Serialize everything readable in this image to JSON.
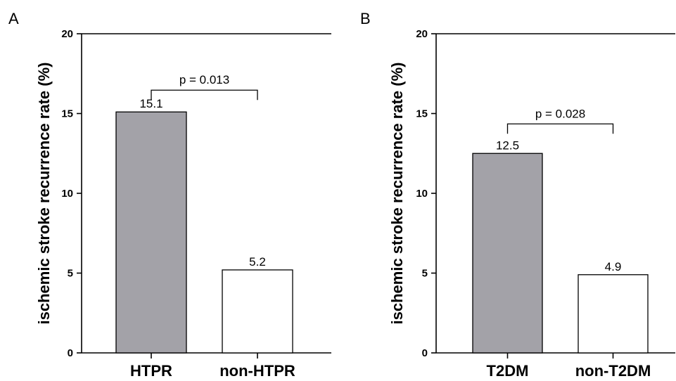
{
  "chart_data": [
    {
      "type": "bar",
      "panel": "A",
      "categories": [
        "HTPR",
        "non-HTPR"
      ],
      "values": [
        15.1,
        5.2
      ],
      "value_labels": [
        "15.1",
        "5.2"
      ],
      "bar_colors": [
        "#a3a2a8",
        "#ffffff"
      ],
      "ylabel": "ischemic stroke recurrence rate (%)",
      "ylim": [
        0,
        20
      ],
      "yticks": [
        0,
        5,
        10,
        15,
        20
      ],
      "significance": {
        "text": "p = 0.013",
        "between": [
          0,
          1
        ]
      },
      "grid": false,
      "legend": "none"
    },
    {
      "type": "bar",
      "panel": "B",
      "categories": [
        "T2DM",
        "non-T2DM"
      ],
      "values": [
        12.5,
        4.9
      ],
      "value_labels": [
        "12.5",
        "4.9"
      ],
      "bar_colors": [
        "#a3a2a8",
        "#ffffff"
      ],
      "ylabel": "ischemic stroke recurrence rate (%)",
      "ylim": [
        0,
        20
      ],
      "yticks": [
        0,
        5,
        10,
        15,
        20
      ],
      "significance": {
        "text": "p = 0.028",
        "between": [
          0,
          1
        ]
      },
      "grid": false,
      "legend": "none"
    }
  ]
}
